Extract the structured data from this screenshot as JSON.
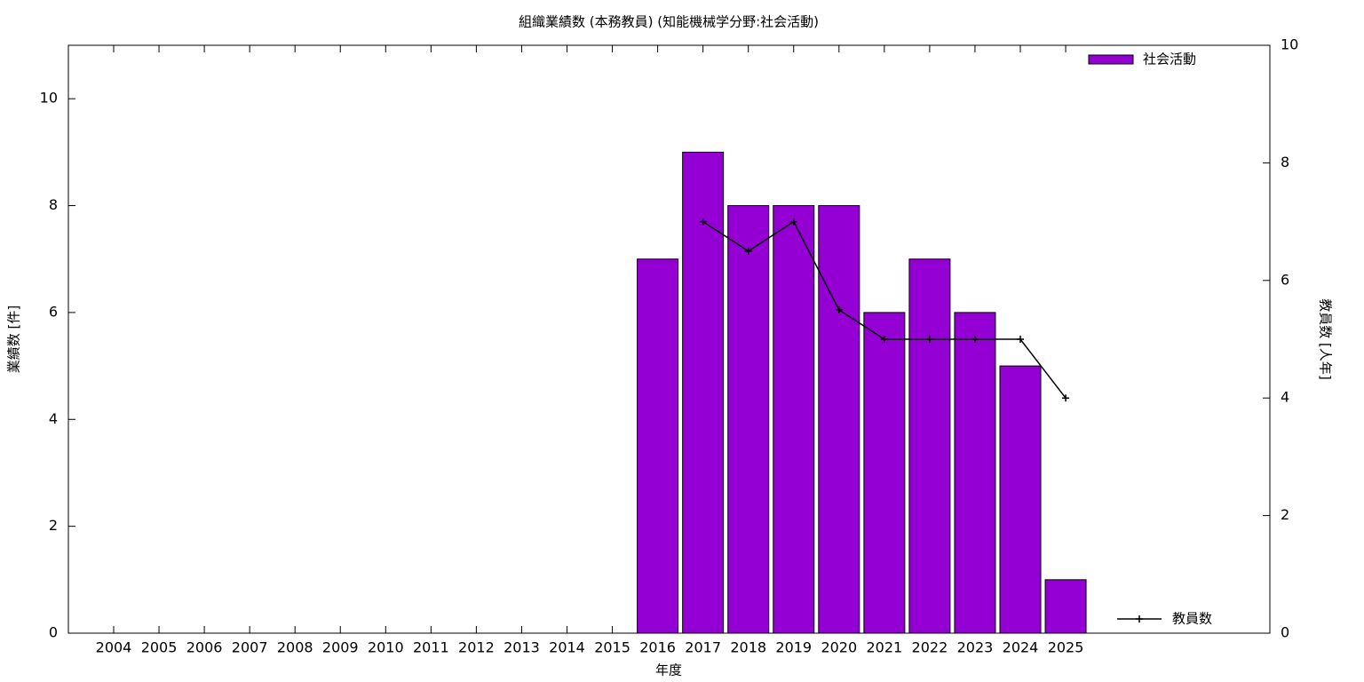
{
  "chart_data": {
    "type": "bar",
    "title": "組織業績数 (本務教員) (知能機械学分野:社会活動)",
    "x_label": "年度",
    "y_label": "業績数 [件]",
    "y2_label": "教員数 [人年]",
    "categories": [
      "2004",
      "2005",
      "2006",
      "2007",
      "2008",
      "2009",
      "2010",
      "2011",
      "2012",
      "2013",
      "2014",
      "2015",
      "2016",
      "2017",
      "2018",
      "2019",
      "2020",
      "2021",
      "2022",
      "2023",
      "2024",
      "2025"
    ],
    "series": [
      {
        "name": "社会活動",
        "type": "bar",
        "color": "#9400d3",
        "values": [
          null,
          null,
          null,
          null,
          null,
          null,
          null,
          null,
          null,
          null,
          null,
          null,
          7,
          9,
          8,
          8,
          8,
          6,
          7,
          6,
          5,
          1
        ]
      },
      {
        "name": "教員数",
        "type": "line",
        "color": "#000000",
        "axis": "y2",
        "values": [
          null,
          null,
          null,
          null,
          null,
          null,
          null,
          null,
          null,
          null,
          null,
          null,
          null,
          7,
          6.5,
          7,
          5.5,
          5,
          5,
          5,
          5,
          4
        ]
      }
    ],
    "ylim": [
      0,
      11
    ],
    "yticks": [
      0,
      2,
      4,
      6,
      8,
      10
    ],
    "y2lim": [
      0,
      10
    ],
    "y2ticks": [
      0,
      2,
      4,
      6,
      8,
      10
    ],
    "grid": false
  }
}
